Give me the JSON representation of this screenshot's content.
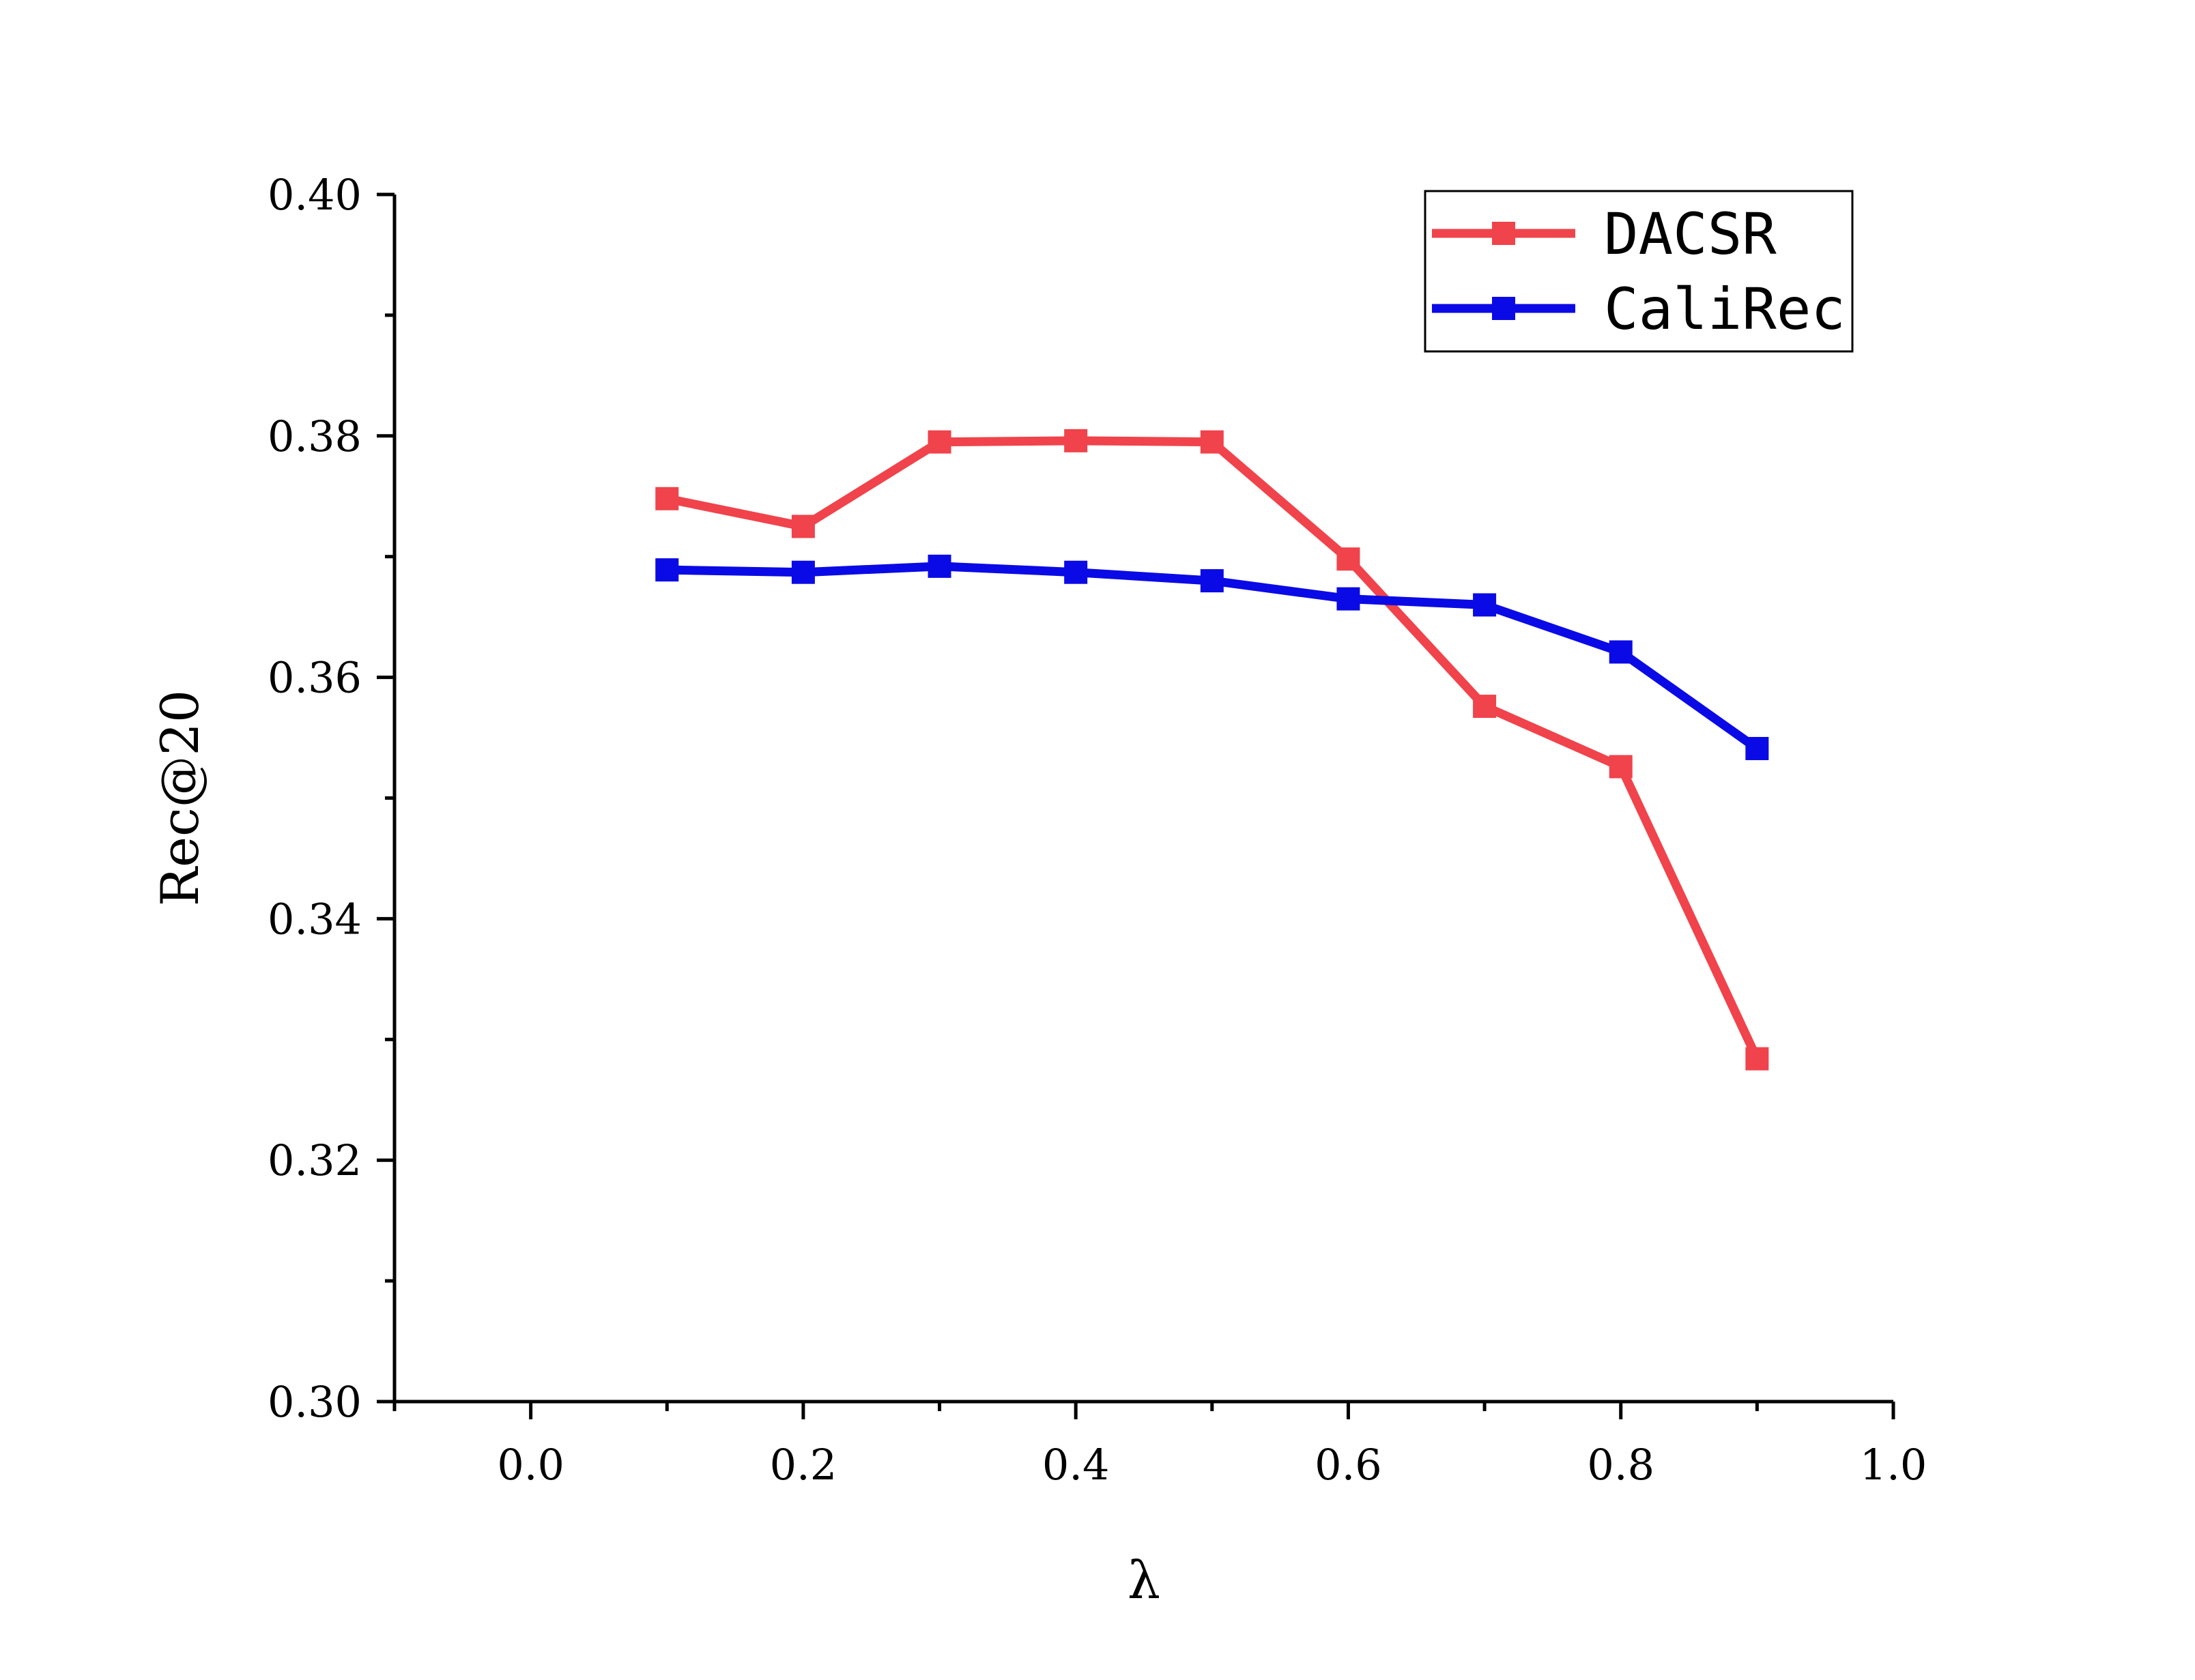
{
  "chart_data": {
    "type": "line",
    "title": "",
    "xlabel": "λ",
    "ylabel": "Rec@20",
    "xlim": [
      -0.1,
      1.0
    ],
    "ylim": [
      0.3,
      0.4
    ],
    "xticks": [
      0.0,
      0.2,
      0.4,
      0.6,
      0.8,
      1.0
    ],
    "xtick_labels": [
      "0.0",
      "0.2",
      "0.4",
      "0.6",
      "0.8",
      "1.0"
    ],
    "yticks": [
      0.3,
      0.32,
      0.34,
      0.36,
      0.38,
      0.4
    ],
    "ytick_labels": [
      "0.30",
      "0.32",
      "0.34",
      "0.36",
      "0.38",
      "0.40"
    ],
    "grid": false,
    "legend_position": "top-right",
    "x": [
      0.1,
      0.2,
      0.3,
      0.4,
      0.5,
      0.6,
      0.7,
      0.8,
      0.9
    ],
    "series": [
      {
        "name": "DACSR",
        "color": "#f0434b",
        "marker": "square",
        "values": [
          0.3748,
          0.3725,
          0.3795,
          0.3796,
          0.3795,
          0.3698,
          0.3576,
          0.3526,
          0.3284
        ]
      },
      {
        "name": "CaliRec",
        "color": "#0a0ae6",
        "marker": "square",
        "values": [
          0.3689,
          0.3687,
          0.3692,
          0.3687,
          0.368,
          0.3665,
          0.366,
          0.3621,
          0.3541
        ]
      }
    ]
  }
}
